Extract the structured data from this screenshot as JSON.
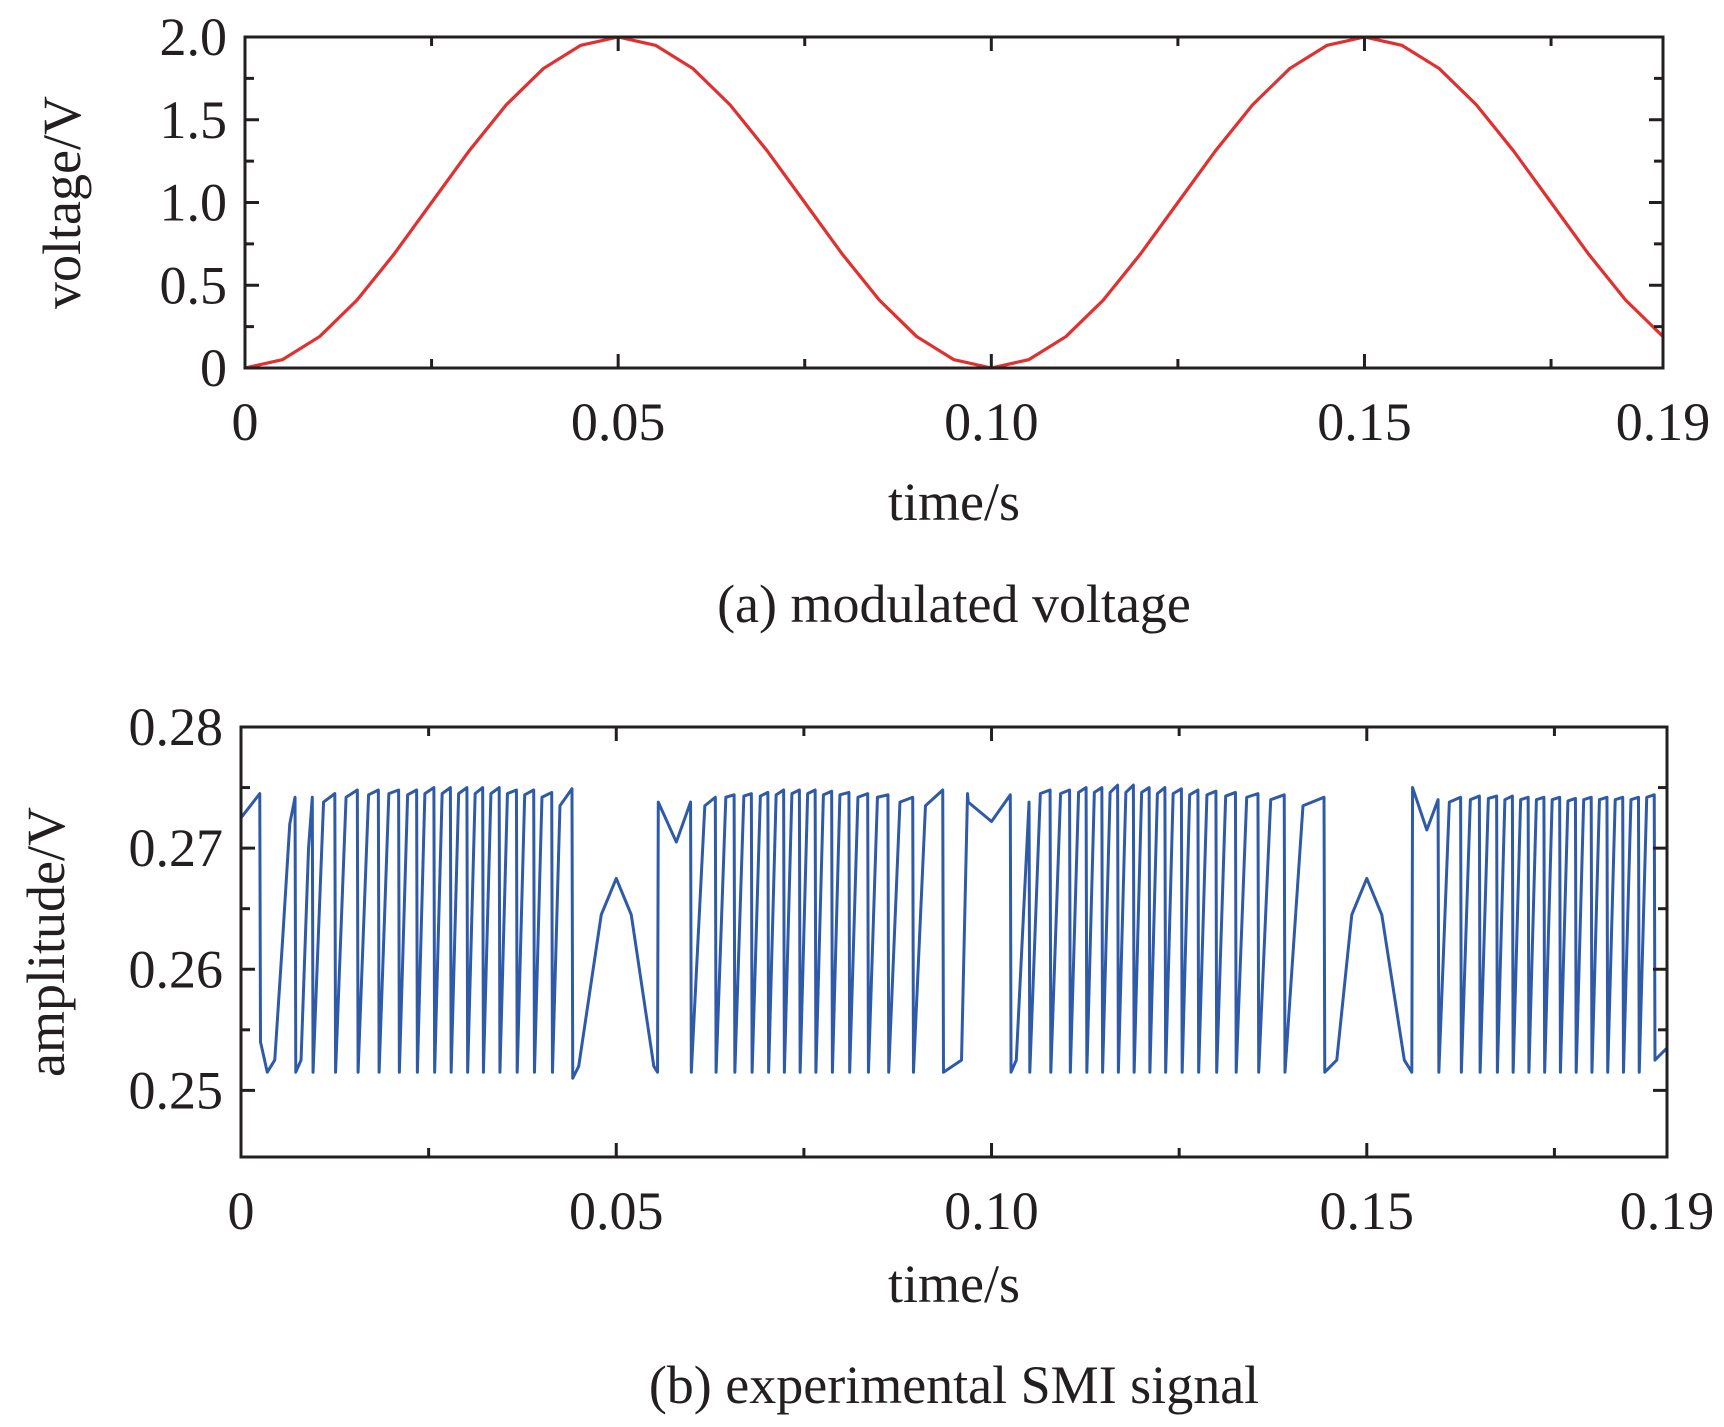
{
  "chart_data": [
    {
      "type": "line",
      "caption": "(a) modulated voltage",
      "xlabel": "time/s",
      "ylabel": "voltage/V",
      "xlim": [
        0,
        0.19
      ],
      "ylim": [
        0,
        2.0
      ],
      "x_ticks": [
        0,
        0.05,
        0.1,
        0.15,
        0.19
      ],
      "x_tick_labels": [
        "0",
        "0.05",
        "0.10",
        "0.15",
        "0.19"
      ],
      "y_ticks": [
        0,
        0.5,
        1.0,
        1.5,
        2.0
      ],
      "y_tick_labels": [
        "0",
        "0.5",
        "1.0",
        "1.5",
        "2.0"
      ],
      "x_minor_ticks": [
        0.025,
        0.075,
        0.125,
        0.175
      ],
      "grid": false,
      "series": [
        {
          "color": "#e03030",
          "function": "1 - cos(2*pi*t/0.1)",
          "x": [
            0,
            0.005,
            0.01,
            0.015,
            0.02,
            0.025,
            0.03,
            0.035,
            0.04,
            0.045,
            0.05,
            0.055,
            0.06,
            0.065,
            0.07,
            0.075,
            0.08,
            0.085,
            0.09,
            0.095,
            0.1,
            0.105,
            0.11,
            0.115,
            0.12,
            0.125,
            0.13,
            0.135,
            0.14,
            0.145,
            0.15,
            0.155,
            0.16,
            0.165,
            0.17,
            0.175,
            0.18,
            0.185,
            0.19
          ],
          "y": [
            0,
            0.05,
            0.19,
            0.41,
            0.69,
            1.0,
            1.31,
            1.59,
            1.81,
            1.95,
            2.0,
            1.95,
            1.81,
            1.59,
            1.31,
            1.0,
            0.69,
            0.41,
            0.19,
            0.05,
            0,
            0.05,
            0.19,
            0.41,
            0.69,
            1.0,
            1.31,
            1.59,
            1.81,
            1.95,
            2.0,
            1.95,
            1.81,
            1.59,
            1.31,
            1.0,
            0.69,
            0.41,
            0.19
          ]
        }
      ]
    },
    {
      "type": "line",
      "caption": "(b) experimental SMI signal",
      "xlabel": "time/s",
      "ylabel": "amplitude/V",
      "xlim": [
        0,
        0.19
      ],
      "ylim": [
        0.2445,
        0.28
      ],
      "x_ticks": [
        0,
        0.05,
        0.1,
        0.15,
        0.19
      ],
      "x_tick_labels": [
        "0",
        "0.05",
        "0.10",
        "0.15",
        "0.19"
      ],
      "y_ticks": [
        0.25,
        0.26,
        0.27,
        0.28
      ],
      "y_tick_labels": [
        "0.25",
        "0.26",
        "0.27",
        "0.28"
      ],
      "x_minor_ticks": [
        0.025,
        0.075,
        0.125,
        0.175
      ],
      "grid": false,
      "series": [
        {
          "color": "#2f5aa8",
          "description_fringes": "sawtooth fringes, dense near maximum slope of modulation, hump near 0.05 and 0.15 (peak ~0.2675), flat segment near 0.10 (~0.2725)",
          "x": [
            0,
            0.0025,
            0.0026,
            0.0035,
            0.0045,
            0.0055,
            0.0065,
            0.0072,
            0.0073,
            0.008,
            0.009,
            0.0095,
            0.0096,
            0.011,
            0.0125,
            0.0126,
            0.014,
            0.0155,
            0.0156,
            0.017,
            0.0183,
            0.0184,
            0.0197,
            0.021,
            0.0211,
            0.0222,
            0.0234,
            0.0235,
            0.0245,
            0.0257,
            0.0258,
            0.0268,
            0.0279,
            0.028,
            0.029,
            0.0301,
            0.0302,
            0.0312,
            0.0322,
            0.0323,
            0.0333,
            0.0344,
            0.0345,
            0.0355,
            0.0367,
            0.0368,
            0.0378,
            0.039,
            0.0391,
            0.0401,
            0.0414,
            0.0415,
            0.0425,
            0.0441,
            0.0442,
            0.045,
            0.048,
            0.05,
            0.052,
            0.055,
            0.0555,
            0.0556,
            0.058,
            0.0599,
            0.06,
            0.0618,
            0.0632,
            0.0633,
            0.0646,
            0.0657,
            0.0658,
            0.067,
            0.068,
            0.0681,
            0.0692,
            0.0702,
            0.0703,
            0.0713,
            0.0723,
            0.0724,
            0.0734,
            0.0744,
            0.0745,
            0.0755,
            0.0765,
            0.0766,
            0.0776,
            0.0787,
            0.0788,
            0.0798,
            0.081,
            0.0811,
            0.0822,
            0.0835,
            0.0836,
            0.0848,
            0.0862,
            0.0863,
            0.0878,
            0.0895,
            0.0896,
            0.0912,
            0.0935,
            0.0936,
            0.096,
            0.0968,
            0.0969,
            0.1,
            0.1025,
            0.1026,
            0.1033,
            0.105,
            0.1051,
            0.1065,
            0.1078,
            0.1079,
            0.1092,
            0.1104,
            0.1105,
            0.1116,
            0.1126,
            0.1127,
            0.1137,
            0.1147,
            0.1148,
            0.1158,
            0.1168,
            0.1169,
            0.1179,
            0.1189,
            0.119,
            0.12,
            0.121,
            0.1211,
            0.1221,
            0.1231,
            0.1232,
            0.1242,
            0.1253,
            0.1254,
            0.1264,
            0.1275,
            0.1276,
            0.1287,
            0.1299,
            0.13,
            0.1312,
            0.1325,
            0.1326,
            0.134,
            0.1355,
            0.1356,
            0.1372,
            0.139,
            0.1391,
            0.1415,
            0.1443,
            0.1444,
            0.146,
            0.148,
            0.15,
            0.152,
            0.155,
            0.156,
            0.1561,
            0.158,
            0.1595,
            0.1596,
            0.161,
            0.1625,
            0.1626,
            0.1638,
            0.165,
            0.1651,
            0.1662,
            0.1673,
            0.1674,
            0.1684,
            0.1694,
            0.1695,
            0.1705,
            0.1715,
            0.1716,
            0.1726,
            0.1736,
            0.1737,
            0.1747,
            0.1757,
            0.1758,
            0.1768,
            0.1778,
            0.1779,
            0.1789,
            0.1799,
            0.18,
            0.181,
            0.182,
            0.1821,
            0.1831,
            0.1841,
            0.1842,
            0.1852,
            0.1862,
            0.1863,
            0.1873,
            0.1883,
            0.1884,
            0.19
          ],
          "y": [
            0.2725,
            0.2745,
            0.254,
            0.2515,
            0.2525,
            0.262,
            0.272,
            0.2742,
            0.2515,
            0.2525,
            0.27,
            0.2742,
            0.2515,
            0.2738,
            0.2745,
            0.2515,
            0.2742,
            0.2748,
            0.2515,
            0.2744,
            0.2748,
            0.2515,
            0.2745,
            0.2748,
            0.2515,
            0.2744,
            0.2748,
            0.2515,
            0.2745,
            0.275,
            0.2515,
            0.2745,
            0.275,
            0.2515,
            0.2745,
            0.275,
            0.2515,
            0.2745,
            0.275,
            0.2515,
            0.2745,
            0.275,
            0.2515,
            0.2745,
            0.2748,
            0.2515,
            0.2744,
            0.2748,
            0.2515,
            0.2742,
            0.2746,
            0.2515,
            0.2735,
            0.2749,
            0.251,
            0.252,
            0.2645,
            0.2675,
            0.2645,
            0.252,
            0.2515,
            0.2738,
            0.2705,
            0.2738,
            0.2515,
            0.2735,
            0.2742,
            0.2515,
            0.2742,
            0.2744,
            0.2515,
            0.2743,
            0.2745,
            0.2515,
            0.2743,
            0.2746,
            0.2515,
            0.2744,
            0.2748,
            0.2515,
            0.2745,
            0.2748,
            0.2515,
            0.2745,
            0.2748,
            0.2515,
            0.2744,
            0.2747,
            0.2515,
            0.2744,
            0.2746,
            0.2515,
            0.2742,
            0.2745,
            0.2515,
            0.2742,
            0.2744,
            0.2515,
            0.2738,
            0.2742,
            0.2515,
            0.2735,
            0.2748,
            0.2515,
            0.2525,
            0.2745,
            0.2738,
            0.2722,
            0.2744,
            0.2515,
            0.2525,
            0.2738,
            0.2515,
            0.2745,
            0.2748,
            0.2515,
            0.2745,
            0.2748,
            0.2515,
            0.2746,
            0.275,
            0.2515,
            0.2746,
            0.275,
            0.2515,
            0.2746,
            0.2752,
            0.2515,
            0.2746,
            0.2752,
            0.2515,
            0.2746,
            0.275,
            0.2515,
            0.2745,
            0.275,
            0.2515,
            0.2745,
            0.2749,
            0.2515,
            0.2744,
            0.2748,
            0.2515,
            0.2744,
            0.2747,
            0.2515,
            0.2743,
            0.2746,
            0.2515,
            0.2742,
            0.2745,
            0.2515,
            0.274,
            0.2744,
            0.2515,
            0.2735,
            0.2742,
            0.2515,
            0.2525,
            0.2645,
            0.2675,
            0.2645,
            0.2525,
            0.2515,
            0.275,
            0.2715,
            0.274,
            0.2515,
            0.2738,
            0.2742,
            0.2515,
            0.274,
            0.2743,
            0.2515,
            0.2741,
            0.2743,
            0.2515,
            0.274,
            0.2743,
            0.2515,
            0.274,
            0.2742,
            0.2515,
            0.274,
            0.2742,
            0.2515,
            0.274,
            0.2742,
            0.2515,
            0.2739,
            0.2741,
            0.2515,
            0.274,
            0.2742,
            0.2515,
            0.274,
            0.2742,
            0.2515,
            0.274,
            0.2742,
            0.2515,
            0.274,
            0.2742,
            0.2515,
            0.2742,
            0.2744,
            0.2525,
            0.2535
          ]
        }
      ]
    }
  ]
}
